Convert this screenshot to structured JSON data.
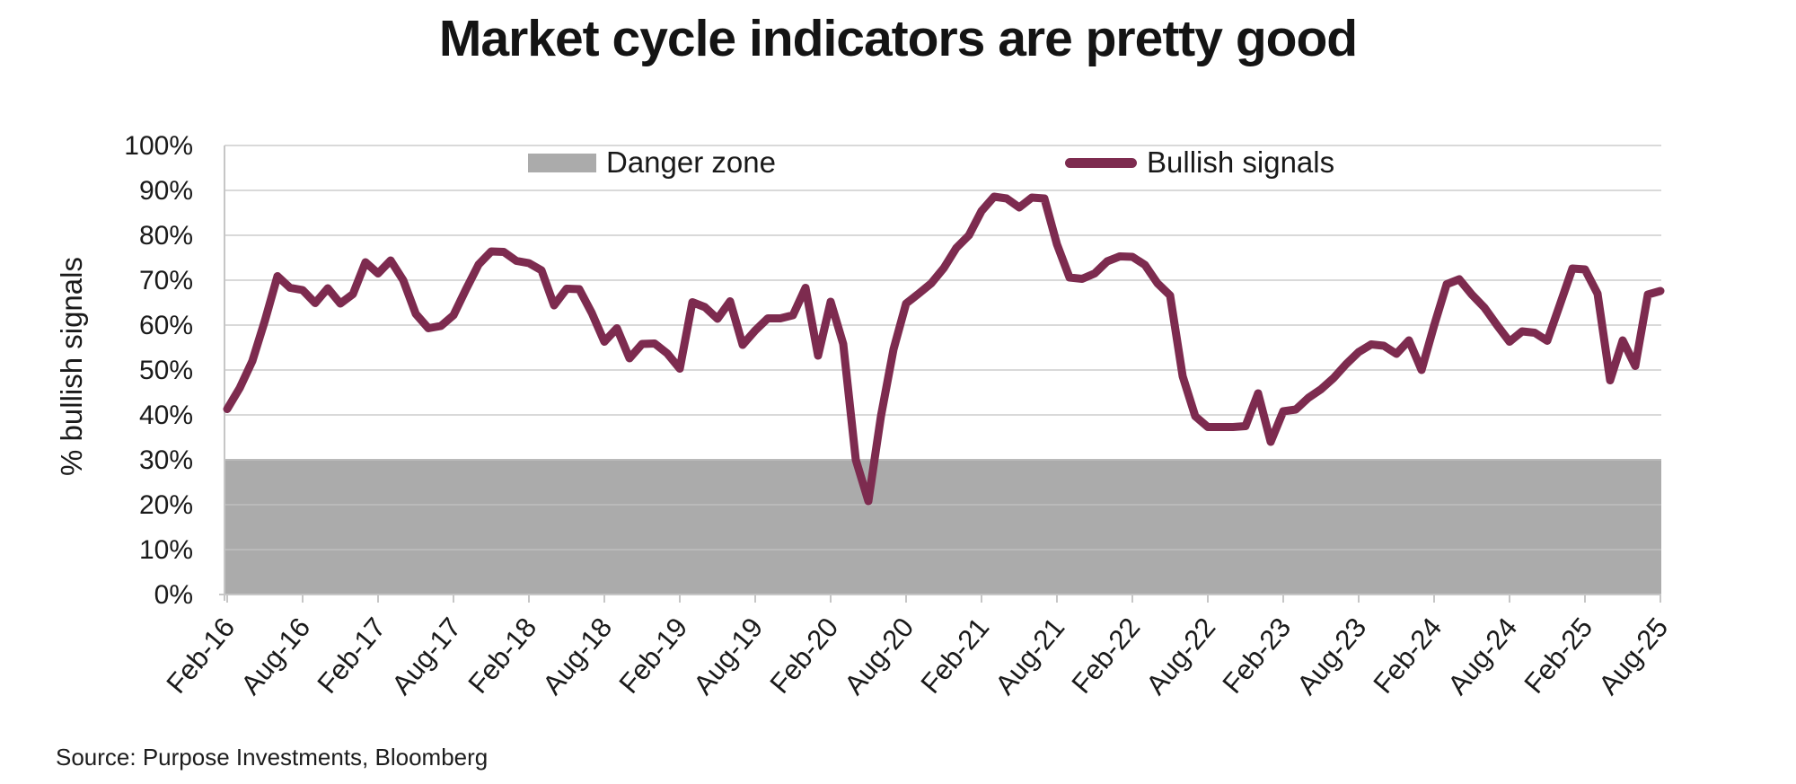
{
  "chart_data": {
    "type": "line",
    "title": "Market cycle indicators are pretty good",
    "ylabel": "% bullish signals",
    "source": "Source: Purpose Investments, Bloomberg",
    "ylim": [
      0,
      100
    ],
    "grid": "horizontal",
    "legend_position": "top-inside",
    "y_tick_labels": [
      "0%",
      "10%",
      "20%",
      "30%",
      "40%",
      "50%",
      "60%",
      "70%",
      "80%",
      "90%",
      "100%"
    ],
    "x_tick_labels": [
      "Feb-16",
      "Aug-16",
      "Feb-17",
      "Aug-17",
      "Feb-18",
      "Aug-18",
      "Feb-19",
      "Aug-19",
      "Feb-20",
      "Aug-20",
      "Feb-21",
      "Aug-21",
      "Feb-22",
      "Aug-22",
      "Feb-23",
      "Aug-23",
      "Feb-24",
      "Aug-24",
      "Feb-25",
      "Aug-25"
    ],
    "x_start": "Feb-2016",
    "x_end": "Aug-2025",
    "interval": "monthly",
    "danger_zone": {
      "label": "Danger zone",
      "from": 0,
      "to": 30,
      "color": "#ABABAB"
    },
    "legend": [
      {
        "label": "Danger zone",
        "type": "area",
        "color": "#ABABAB"
      },
      {
        "label": "Bullish signals",
        "type": "line",
        "color": "#7D2B4F"
      }
    ],
    "series": [
      {
        "name": "Bullish signals",
        "color": "#7D2B4F",
        "values": [
          41.3,
          46,
          52,
          61,
          70.9,
          68.3,
          67.8,
          64.9,
          68.2,
          64.8,
          66.9,
          74,
          71.5,
          74.4,
          70,
          62.5,
          59.3,
          59.8,
          62.2,
          68,
          73.5,
          76.4,
          76.3,
          74.3,
          73.8,
          72.2,
          64.4,
          68.1,
          68,
          62.7,
          56.3,
          59.3,
          52.6,
          55.8,
          55.9,
          53.7,
          50.3,
          65.1,
          64,
          61.4,
          65.3,
          55.6,
          58.8,
          61.5,
          61.5,
          62.2,
          68.3,
          53.2,
          65.2,
          55.8,
          30,
          20.8,
          39.7,
          54.6,
          64.8,
          67,
          69.3,
          72.7,
          77.2,
          80,
          85.4,
          88.6,
          88.2,
          86.2,
          88.4,
          88.2,
          78,
          70.6,
          70.3,
          71.5,
          74.2,
          75.3,
          75.2,
          73.4,
          69.3,
          66.6,
          48.6,
          39.7,
          37.3,
          37.3,
          37.3,
          37.5,
          44.8,
          34,
          40.8,
          41.2,
          43.8,
          45.7,
          48.2,
          51.3,
          54,
          55.7,
          55.4,
          53.6,
          56.6,
          50,
          59.9,
          69.1,
          70.2,
          66.8,
          63.9,
          60,
          56.3,
          58.6,
          58.3,
          56.5,
          64.5,
          72.6,
          72.4,
          67,
          47.7,
          56.6,
          50.9,
          66.8,
          67.6
        ]
      }
    ],
    "colors": {
      "gridline": "#D9D9D9",
      "gridline_in_zone": "#BABABA",
      "axis": "#C6C6C6",
      "text": "#1a1a1a"
    }
  }
}
